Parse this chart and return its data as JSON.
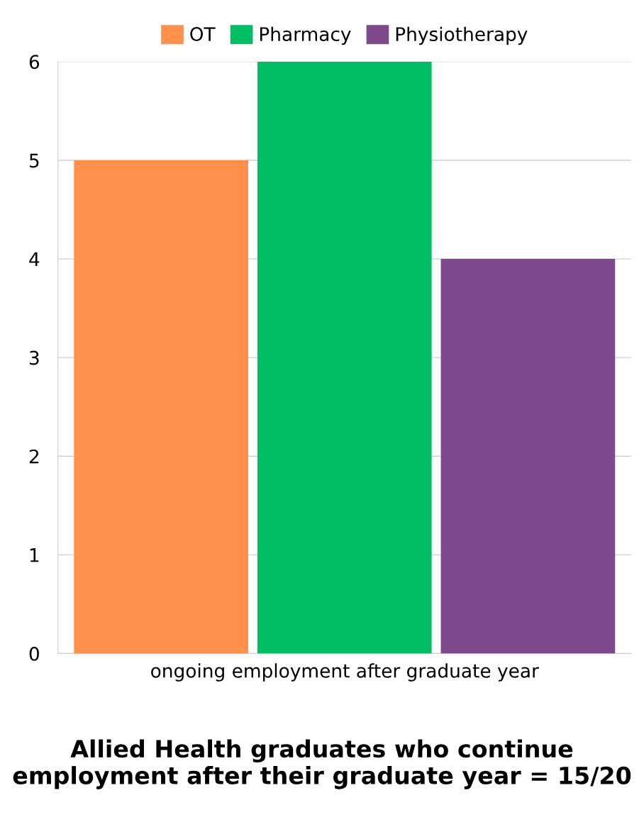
{
  "chart_data": {
    "type": "bar",
    "title": "Allied Health graduates who continue employment after their graduate year = 15/20",
    "categories": [
      "ongoing employment after graduate year"
    ],
    "series": [
      {
        "name": "OT",
        "color": "#ff914d",
        "values": [
          5
        ]
      },
      {
        "name": "Pharmacy",
        "color": "#00bf63",
        "values": [
          6
        ]
      },
      {
        "name": "Physiotherapy",
        "color": "#7e4a8c",
        "values": [
          4
        ]
      }
    ],
    "ylim": [
      0,
      6
    ],
    "yticks": [
      0,
      1,
      2,
      3,
      4,
      5,
      6
    ],
    "grid": "y",
    "legend": "top"
  }
}
